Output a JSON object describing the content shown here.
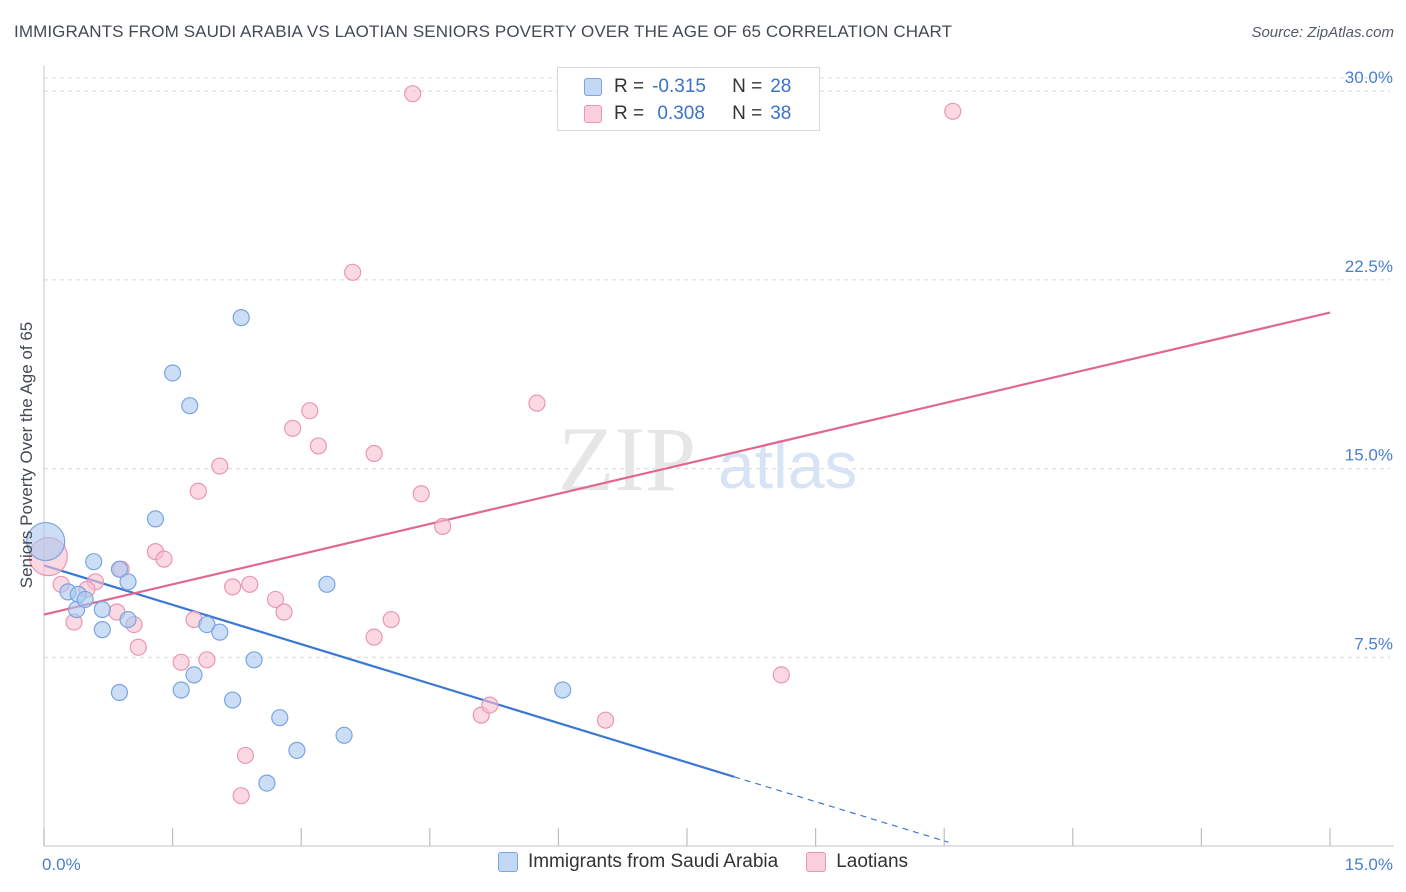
{
  "title": "IMMIGRANTS FROM SAUDI ARABIA VS LAOTIAN SENIORS POVERTY OVER THE AGE OF 65 CORRELATION CHART",
  "source": "Source: ZipAtlas.com",
  "watermark": "ZIPatlas",
  "legend": {
    "rows": [
      {
        "r_label": "R =",
        "r_value": "-0.315",
        "n_label": "N =",
        "n_value": "28"
      },
      {
        "r_label": "R =",
        "r_value": " 0.308",
        "n_label": "N =",
        "n_value": "38"
      }
    ]
  },
  "colors": {
    "blue_fill": "#a9c8f0",
    "blue_stroke": "#7aa5e0",
    "blue_line": "#3b78d4",
    "pink_fill": "#f6bfd0",
    "pink_stroke": "#ec96b2",
    "pink_line": "#e0688f",
    "tick_label": "#4a7fd0",
    "grid": "#d8d8d8"
  },
  "chart_data": {
    "type": "scatter",
    "ylabel": "Seniors Poverty Over the Age of 65",
    "xlim": [
      0,
      15
    ],
    "ylim": [
      0,
      31
    ],
    "x_tick_labels": [
      {
        "value": 0,
        "label": "0.0%"
      },
      {
        "value": 15,
        "label": "15.0%"
      }
    ],
    "y_ticks": [
      {
        "value": 7.5,
        "label": "7.5%"
      },
      {
        "value": 15,
        "label": "15.0%"
      },
      {
        "value": 22.5,
        "label": "22.5%"
      },
      {
        "value": 30,
        "label": "30.0%"
      }
    ],
    "grid": "horizontal dashed",
    "legend_position": "top-center",
    "series": [
      {
        "name": "Immigrants from Saudi Arabia",
        "color": "blue",
        "points": [
          [
            0.02,
            12.1
          ],
          [
            0.28,
            10.1
          ],
          [
            0.4,
            10.0
          ],
          [
            0.38,
            9.4
          ],
          [
            0.48,
            9.8
          ],
          [
            0.58,
            11.3
          ],
          [
            0.68,
            9.4
          ],
          [
            0.68,
            8.6
          ],
          [
            0.88,
            11.0
          ],
          [
            0.98,
            10.5
          ],
          [
            0.98,
            9.0
          ],
          [
            1.3,
            13.0
          ],
          [
            1.5,
            18.8
          ],
          [
            1.7,
            17.5
          ],
          [
            1.9,
            8.8
          ],
          [
            2.05,
            8.5
          ],
          [
            2.3,
            21.0
          ],
          [
            2.45,
            7.4
          ],
          [
            0.88,
            6.1
          ],
          [
            1.6,
            6.2
          ],
          [
            1.75,
            6.8
          ],
          [
            2.2,
            5.8
          ],
          [
            2.75,
            5.1
          ],
          [
            3.3,
            10.4
          ],
          [
            2.95,
            3.8
          ],
          [
            3.5,
            4.4
          ],
          [
            2.6,
            2.5
          ],
          [
            6.05,
            6.2
          ]
        ]
      },
      {
        "name": "Laotians",
        "color": "pink",
        "points": [
          [
            0.05,
            11.5
          ],
          [
            0.2,
            10.4
          ],
          [
            0.35,
            8.9
          ],
          [
            0.6,
            10.5
          ],
          [
            0.5,
            10.2
          ],
          [
            0.85,
            9.3
          ],
          [
            0.9,
            11.0
          ],
          [
            1.05,
            8.8
          ],
          [
            1.1,
            7.9
          ],
          [
            1.3,
            11.7
          ],
          [
            1.4,
            11.4
          ],
          [
            1.6,
            7.3
          ],
          [
            1.75,
            9.0
          ],
          [
            1.8,
            14.1
          ],
          [
            1.9,
            7.4
          ],
          [
            2.05,
            15.1
          ],
          [
            2.2,
            10.3
          ],
          [
            2.4,
            10.4
          ],
          [
            2.7,
            9.8
          ],
          [
            2.8,
            9.3
          ],
          [
            2.9,
            16.6
          ],
          [
            3.1,
            17.3
          ],
          [
            3.2,
            15.9
          ],
          [
            3.6,
            22.8
          ],
          [
            3.85,
            15.6
          ],
          [
            3.85,
            8.3
          ],
          [
            4.05,
            9.0
          ],
          [
            4.3,
            29.9
          ],
          [
            4.4,
            14.0
          ],
          [
            4.65,
            12.7
          ],
          [
            5.1,
            5.2
          ],
          [
            5.2,
            5.6
          ],
          [
            5.75,
            17.6
          ],
          [
            6.55,
            5.0
          ],
          [
            8.6,
            6.8
          ],
          [
            10.6,
            29.2
          ],
          [
            2.35,
            3.6
          ],
          [
            2.3,
            2.0
          ]
        ]
      }
    ],
    "trend_lines": [
      {
        "series": "Immigrants from Saudi Arabia",
        "x": [
          0,
          8.05
        ],
        "y": [
          11.15,
          2.75
        ],
        "dashed_extension": {
          "x": [
            8.05,
            10.55
          ],
          "y": [
            2.75,
            0.15
          ]
        }
      },
      {
        "series": "Laotians",
        "x": [
          0,
          15
        ],
        "y": [
          9.2,
          21.2
        ]
      }
    ]
  },
  "bottom_legend": [
    {
      "label": "Immigrants from Saudi Arabia",
      "color": "blue"
    },
    {
      "label": "Laotians",
      "color": "pink"
    }
  ]
}
